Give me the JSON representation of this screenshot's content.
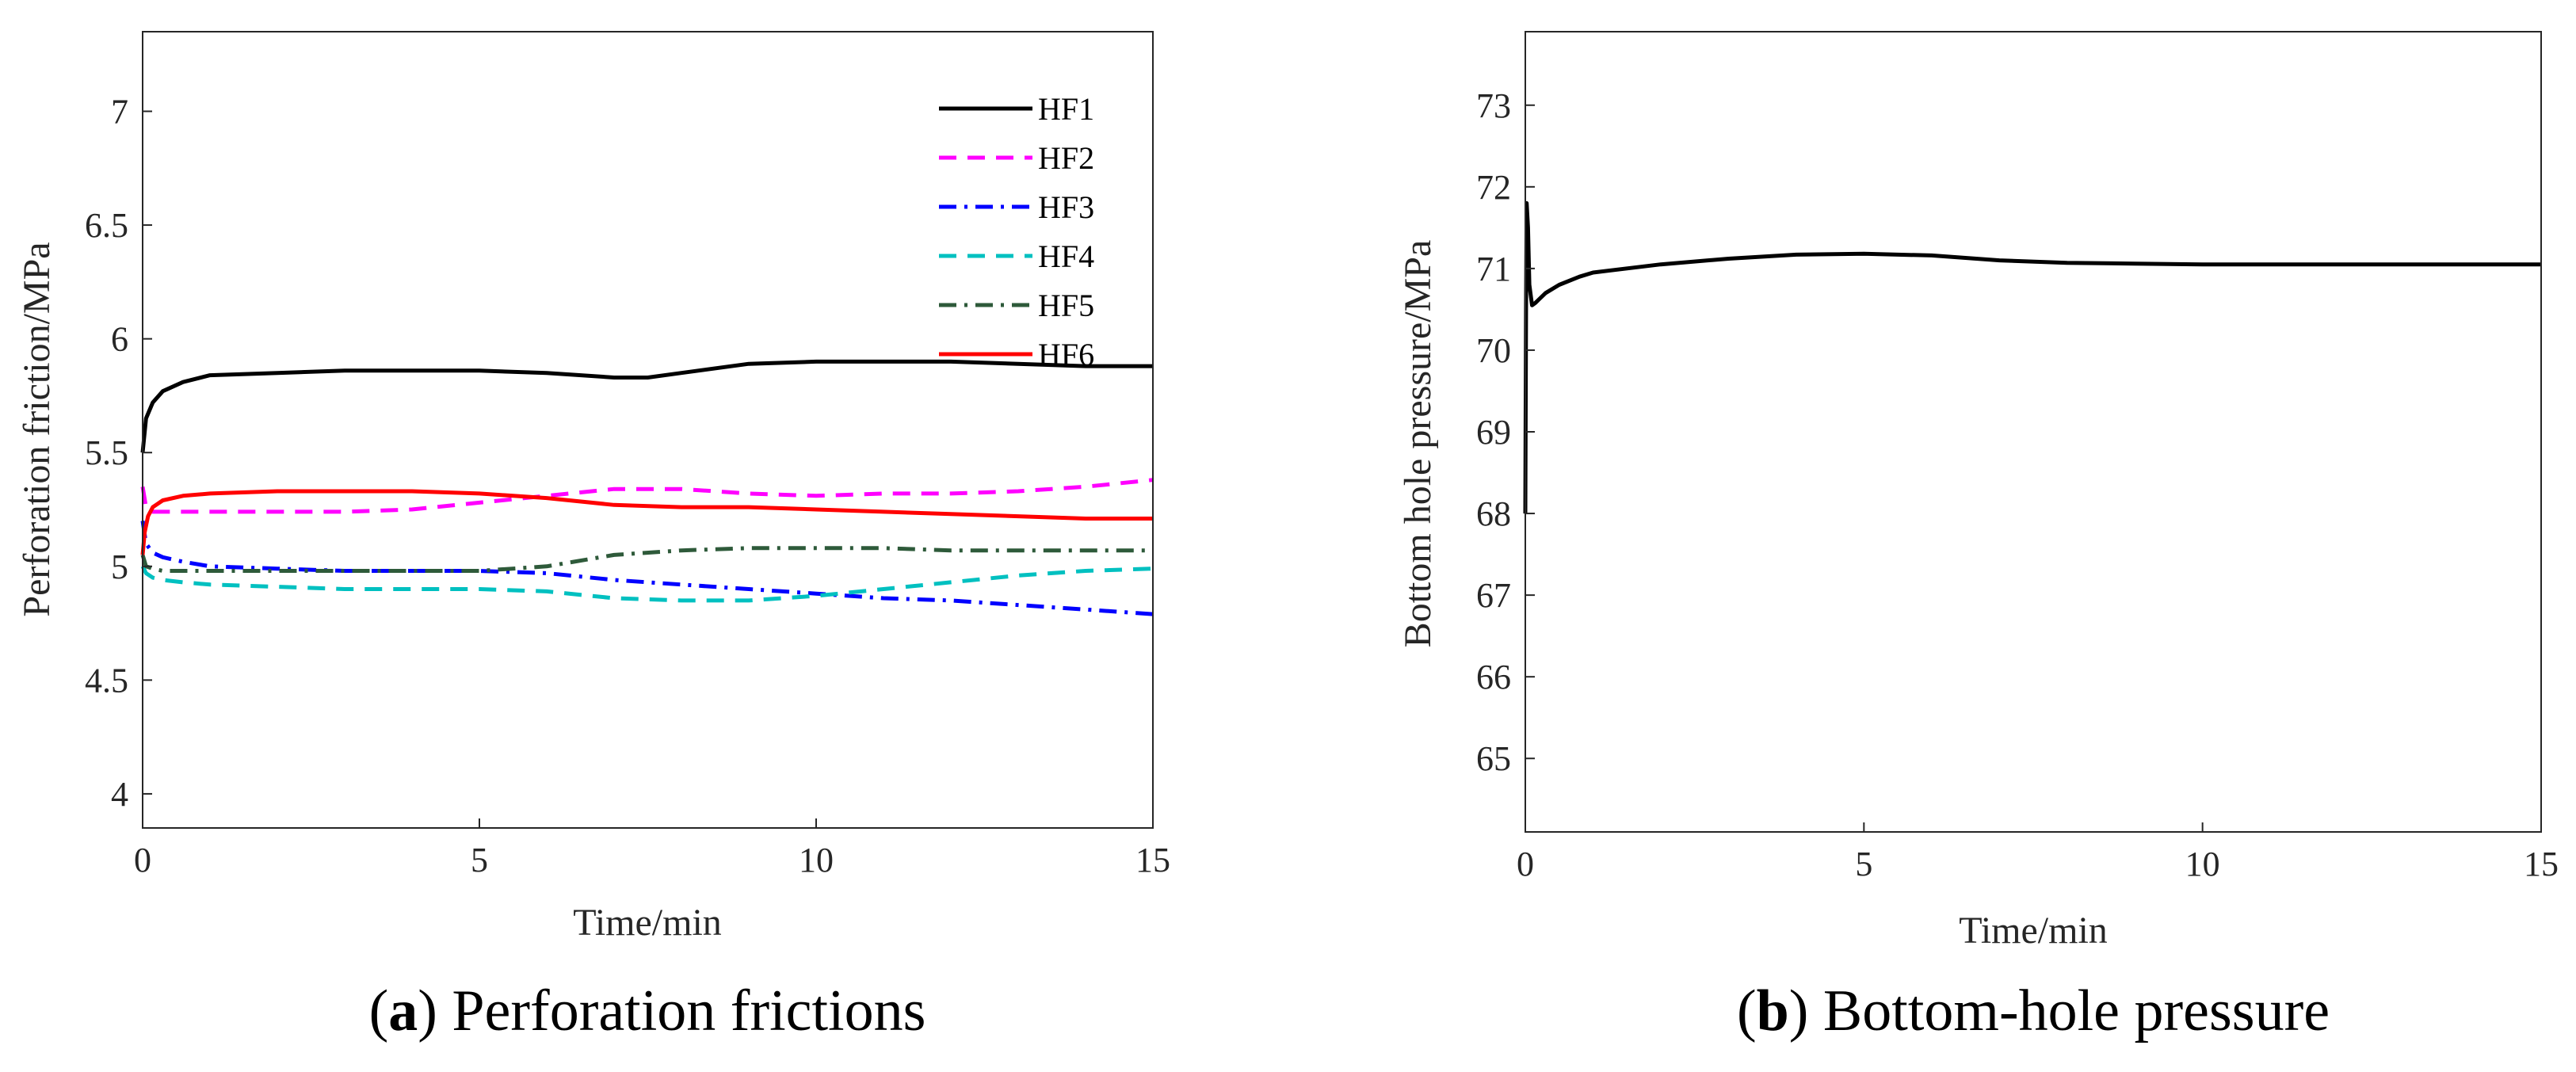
{
  "chart_data": [
    {
      "id": "a",
      "type": "line",
      "caption": {
        "letter": "a",
        "text": "Perforation frictions"
      },
      "xlabel": "Time/min",
      "ylabel": "Perforation friction/MPa",
      "xlim": [
        0,
        15
      ],
      "ylim": [
        3.85,
        7.35
      ],
      "xticks": [
        0,
        5,
        10,
        15
      ],
      "yticks": [
        4,
        4.5,
        5,
        5.5,
        6,
        6.5,
        7
      ],
      "legend_position": "top-right",
      "series": [
        {
          "name": "HF1",
          "color": "#000000",
          "dash": "solid",
          "x": [
            0,
            0.05,
            0.15,
            0.3,
            0.6,
            1,
            2,
            3,
            4,
            5,
            6,
            7,
            7.5,
            8,
            9,
            10,
            11,
            12,
            13,
            14,
            15
          ],
          "y": [
            5.5,
            5.65,
            5.72,
            5.77,
            5.81,
            5.84,
            5.85,
            5.86,
            5.86,
            5.86,
            5.85,
            5.83,
            5.83,
            5.85,
            5.89,
            5.9,
            5.9,
            5.9,
            5.89,
            5.88,
            5.88
          ]
        },
        {
          "name": "HF2",
          "color": "#ff00ff",
          "dash": "dashed",
          "x": [
            0,
            0.05,
            0.15,
            0.3,
            0.6,
            1,
            2,
            3,
            4,
            5,
            6,
            7,
            8,
            9,
            10,
            11,
            12,
            13,
            14,
            15
          ],
          "y": [
            5.35,
            5.26,
            5.24,
            5.24,
            5.24,
            5.24,
            5.24,
            5.24,
            5.25,
            5.28,
            5.31,
            5.34,
            5.34,
            5.32,
            5.31,
            5.32,
            5.32,
            5.33,
            5.35,
            5.38
          ]
        },
        {
          "name": "HF3",
          "color": "#0000ff",
          "dash": "dashdot",
          "x": [
            0,
            0.05,
            0.15,
            0.3,
            0.6,
            1,
            2,
            3,
            4,
            5,
            6,
            7,
            8,
            9,
            10,
            11,
            12,
            13,
            14,
            15
          ],
          "y": [
            5.2,
            5.1,
            5.06,
            5.04,
            5.02,
            5.0,
            4.99,
            4.98,
            4.98,
            4.98,
            4.97,
            4.94,
            4.92,
            4.9,
            4.88,
            4.86,
            4.85,
            4.83,
            4.81,
            4.79
          ]
        },
        {
          "name": "HF4",
          "color": "#00c0c0",
          "dash": "dashed",
          "x": [
            0,
            0.05,
            0.15,
            0.3,
            0.6,
            1,
            2,
            3,
            4,
            5,
            6,
            7,
            8,
            9,
            10,
            11,
            12,
            13,
            14,
            15
          ],
          "y": [
            5.0,
            4.97,
            4.95,
            4.94,
            4.93,
            4.92,
            4.91,
            4.9,
            4.9,
            4.9,
            4.89,
            4.86,
            4.85,
            4.85,
            4.87,
            4.9,
            4.93,
            4.96,
            4.98,
            4.99
          ]
        },
        {
          "name": "HF5",
          "color": "#2e5a3a",
          "dash": "dashdot",
          "x": [
            0,
            0.05,
            0.15,
            0.3,
            0.6,
            1,
            2,
            3,
            4,
            5,
            6,
            7,
            8,
            9,
            10,
            11,
            12,
            13,
            14,
            15
          ],
          "y": [
            5.05,
            5.0,
            4.99,
            4.98,
            4.98,
            4.98,
            4.98,
            4.98,
            4.98,
            4.98,
            5.0,
            5.05,
            5.07,
            5.08,
            5.08,
            5.08,
            5.07,
            5.07,
            5.07,
            5.07
          ]
        },
        {
          "name": "HF6",
          "color": "#ff0000",
          "dash": "solid",
          "x": [
            0,
            0.03,
            0.08,
            0.15,
            0.3,
            0.6,
            1,
            2,
            3,
            4,
            5,
            6,
            7,
            8,
            9,
            10,
            11,
            12,
            13,
            14,
            15
          ],
          "y": [
            5.05,
            5.15,
            5.22,
            5.26,
            5.29,
            5.31,
            5.32,
            5.33,
            5.33,
            5.33,
            5.32,
            5.3,
            5.27,
            5.26,
            5.26,
            5.25,
            5.24,
            5.23,
            5.22,
            5.21,
            5.21
          ]
        }
      ]
    },
    {
      "id": "b",
      "type": "line",
      "caption": {
        "letter": "b",
        "text": "Bottom-hole pressure"
      },
      "xlabel": "Time/min",
      "ylabel": "Bottom hole pressure/MPa",
      "xlim": [
        0,
        15
      ],
      "ylim": [
        64.1,
        73.9
      ],
      "xticks": [
        0,
        5,
        10,
        15
      ],
      "yticks": [
        65,
        66,
        67,
        68,
        69,
        70,
        71,
        72,
        73
      ],
      "series": [
        {
          "name": "Bottom hole pressure",
          "color": "#000000",
          "dash": "solid",
          "x": [
            0,
            0.01,
            0.02,
            0.04,
            0.06,
            0.1,
            0.15,
            0.2,
            0.3,
            0.5,
            0.8,
            1,
            2,
            3,
            4,
            5,
            6,
            7,
            8,
            9,
            10,
            11,
            12,
            13,
            14,
            15
          ],
          "y": [
            68.0,
            70.5,
            71.8,
            71.5,
            70.8,
            70.55,
            70.58,
            70.62,
            70.7,
            70.8,
            70.9,
            70.95,
            71.05,
            71.12,
            71.17,
            71.18,
            71.16,
            71.1,
            71.07,
            71.06,
            71.05,
            71.05,
            71.05,
            71.05,
            71.05,
            71.05
          ]
        }
      ]
    }
  ]
}
